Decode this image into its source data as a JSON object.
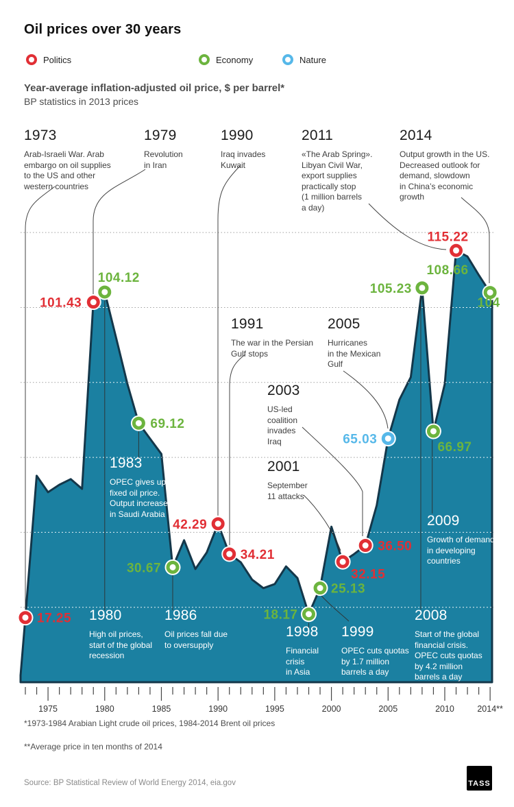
{
  "header": {
    "title": "Oil prices over 30 years",
    "legend": [
      {
        "label": "Politics",
        "category": "politics",
        "color": "#e12f35"
      },
      {
        "label": "Economy",
        "category": "economy",
        "color": "#6cb43e"
      },
      {
        "label": "Nature",
        "category": "nature",
        "color": "#56b8e9"
      }
    ],
    "subtitle_bold": "Year-average inflation-adjusted oil price, $ per barrel*",
    "subtitle_note": "BP statistics in 2013 prices"
  },
  "chart_data": {
    "type": "area",
    "title": "Year-average inflation-adjusted oil price, $ per barrel (2013 prices)",
    "x": [
      1973,
      1974,
      1975,
      1976,
      1977,
      1978,
      1979,
      1980,
      1981,
      1982,
      1983,
      1984,
      1985,
      1986,
      1987,
      1988,
      1989,
      1990,
      1991,
      1992,
      1993,
      1994,
      1995,
      1996,
      1997,
      1998,
      1999,
      2000,
      2001,
      2002,
      2003,
      2004,
      2005,
      2006,
      2007,
      2008,
      2009,
      2010,
      2011,
      2012,
      2013,
      2014
    ],
    "values": [
      17.25,
      55.1,
      50.7,
      52.7,
      54.2,
      51.6,
      101.43,
      104.12,
      92,
      79.6,
      69.12,
      65,
      60.9,
      30.67,
      37.9,
      30.2,
      34.6,
      42.29,
      34.21,
      32,
      27.4,
      25.1,
      26.2,
      30.9,
      27.8,
      18.17,
      25.13,
      41.5,
      32.15,
      34.2,
      36.5,
      47.2,
      65.03,
      75.4,
      81.4,
      105.23,
      66.97,
      79.6,
      115.22,
      113.6,
      108.66,
      104
    ],
    "ylim": [
      0,
      130
    ],
    "gridline_values": [
      20,
      40,
      60,
      80,
      100,
      120
    ],
    "grid": "horizontal-dotted",
    "legend_position": "top",
    "area_color": "#1b80a1",
    "edge_color": "#14374a",
    "category_colors": {
      "politics": "#e12f35",
      "economy": "#6cb43e",
      "nature": "#56b8e9"
    },
    "labeled_points": [
      {
        "year": 1973,
        "value": 17.25,
        "label": "17.25",
        "category": "politics"
      },
      {
        "year": 1979,
        "value": 101.43,
        "label": "101.43",
        "category": "politics"
      },
      {
        "year": 1980,
        "value": 104.12,
        "label": "104.12",
        "category": "economy"
      },
      {
        "year": 1983,
        "value": 69.12,
        "label": "69.12",
        "category": "economy"
      },
      {
        "year": 1986,
        "value": 30.67,
        "label": "30.67",
        "category": "economy"
      },
      {
        "year": 1990,
        "value": 42.29,
        "label": "42.29",
        "category": "politics"
      },
      {
        "year": 1991,
        "value": 34.21,
        "label": "34.21",
        "category": "politics"
      },
      {
        "year": 1998,
        "value": 18.17,
        "label": "18.17",
        "category": "economy"
      },
      {
        "year": 1999,
        "value": 25.13,
        "label": "25.13",
        "category": "economy"
      },
      {
        "year": 2001,
        "value": 32.15,
        "label": "32.15",
        "category": "politics"
      },
      {
        "year": 2003,
        "value": 36.5,
        "label": "36.50",
        "category": "politics"
      },
      {
        "year": 2005,
        "value": 65.03,
        "label": "65.03",
        "category": "nature"
      },
      {
        "year": 2008,
        "value": 105.23,
        "label": "105.23",
        "category": "economy"
      },
      {
        "year": 2009,
        "value": 66.97,
        "label": "66.97",
        "category": "economy"
      },
      {
        "year": 2011,
        "value": 115.22,
        "label": "115.22",
        "category": "politics"
      },
      {
        "year": 2013,
        "value": 108.66,
        "label": "108.66",
        "category": "economy",
        "marker": false
      },
      {
        "year": 2014,
        "value": 104,
        "label": "104",
        "category": "economy"
      }
    ],
    "x_axis": {
      "major_years": [
        1975,
        1980,
        1985,
        1990,
        1995,
        2000,
        2005,
        2010,
        2014
      ],
      "major_labels": [
        "1975",
        "1980",
        "1985",
        "1990",
        "1995",
        "2000",
        "2005",
        "2010",
        "2014**"
      ],
      "minor_tick_every_year": true
    }
  },
  "annotations": {
    "a1973": {
      "year": "1973",
      "text": "Arab-Israeli War. Arab\nembargo on oil supplies\nto the US and other\nwestern countries"
    },
    "a1979": {
      "year": "1979",
      "text": "Revolution\nin Iran"
    },
    "a1990": {
      "year": "1990",
      "text": "Iraq invades\nKuwait"
    },
    "a2011": {
      "year": "2011",
      "text": "«The Arab Spring».\nLibyan Civil War,\nexport supplies\npractically stop\n(1 million barrels\na day)"
    },
    "a2014": {
      "year": "2014",
      "text": "Output growth in the US.\nDecreased outlook for\ndemand, slowdown\nin China’s economic\ngrowth"
    },
    "a1991": {
      "year": "1991",
      "text": "The war in the Persian\nGulf stops"
    },
    "a2005": {
      "year": "2005",
      "text": "Hurricanes\nin the Mexican\nGulf"
    },
    "a2003": {
      "year": "2003",
      "text": "US-led\ncoalition\ninvades\nIraq"
    },
    "a2001": {
      "year": "2001",
      "text": "September\n11 attacks"
    },
    "a1983": {
      "year": "1983",
      "text": "OPEC gives up\nfixed oil price.\nOutput increase\nin Saudi Arabia"
    },
    "a1980": {
      "year": "1980",
      "text": "High oil prices,\nstart of the global\nrecession"
    },
    "a1986": {
      "year": "1986",
      "text": "Oil prices fall due\nto oversupply"
    },
    "a1998": {
      "year": "1998",
      "text": "Financial\ncrisis\nin Asia"
    },
    "a1999": {
      "year": "1999",
      "text": "OPEC cuts quotas\nby 1.7 million\nbarrels a day"
    },
    "a2008": {
      "year": "2008",
      "text": "Start of the global\nfinancial crisis.\nOPEC cuts quotas\nby 4.2 million\nbarrels a day"
    },
    "a2009": {
      "year": "2009",
      "text": "Growth of demand\nin developing\ncountries"
    }
  },
  "footnotes": {
    "note1": "*1973-1984 Arabian Light crude oil prices, 1984-2014 Brent oil prices",
    "note2": "**Average price in ten months of 2014"
  },
  "source": "Source: BP Statistical Review of World Energy 2014, eia.gov",
  "logo": "TASS"
}
